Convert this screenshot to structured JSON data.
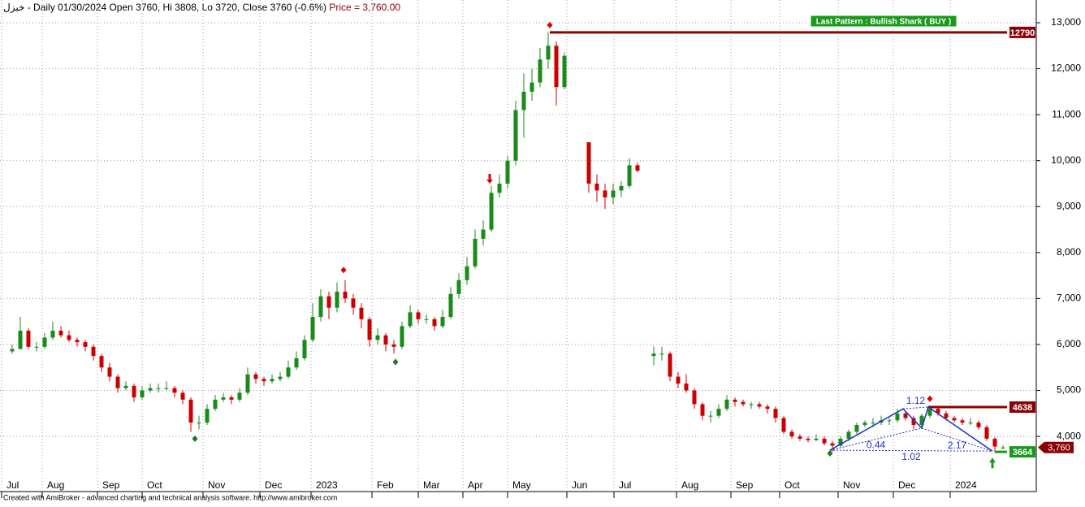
{
  "chart_data": {
    "type": "candlestick",
    "header": "خبزل - Daily 01/30/2024 Open 3760, Hi 3808, Lo 3720, Close 3760 (-0.6%)",
    "price_label": "Price = 3,760.00",
    "footer": "Created with AmiBroker - advanced charting and technical analysis software. http://www.amibroker.com",
    "pattern_label": "Last Pattern : Bullish Shark ( BUY )",
    "up_color": "#1a8a1a",
    "down_color": "#cc0000",
    "ylim": [
      2800,
      13495
    ],
    "xlim": [
      -0.5,
      127.1
    ],
    "yticks": [
      {
        "value": 4000,
        "label": "4,000"
      },
      {
        "value": 5000,
        "label": "5,000"
      },
      {
        "value": 6000,
        "label": "6,000"
      },
      {
        "value": 7000,
        "label": "7,000"
      },
      {
        "value": 8000,
        "label": "8,000"
      },
      {
        "value": 9000,
        "label": "9,000"
      },
      {
        "value": 10000,
        "label": "10,000"
      },
      {
        "value": 11000,
        "label": "11,000"
      },
      {
        "value": 12000,
        "label": "12,000"
      },
      {
        "value": 13000,
        "label": "13,000"
      }
    ],
    "xticks": [
      {
        "value": -0.3,
        "label": "Jul"
      },
      {
        "value": 4.7,
        "label": "Aug"
      },
      {
        "value": 11.5,
        "label": "Sep"
      },
      {
        "value": 17,
        "label": "Oct"
      },
      {
        "value": 24.5,
        "label": "Nov"
      },
      {
        "value": 31.5,
        "label": "Dec"
      },
      {
        "value": 37.8,
        "label": "2023"
      },
      {
        "value": 45.3,
        "label": "Feb"
      },
      {
        "value": 51,
        "label": "Mar"
      },
      {
        "value": 56.5,
        "label": "Apr"
      },
      {
        "value": 62,
        "label": "May"
      },
      {
        "value": 69.3,
        "label": "Jun"
      },
      {
        "value": 75.1,
        "label": "Jul"
      },
      {
        "value": 82.8,
        "label": "Aug"
      },
      {
        "value": 89.5,
        "label": "Sep"
      },
      {
        "value": 95.5,
        "label": "Oct"
      },
      {
        "value": 102.7,
        "label": "Nov"
      },
      {
        "value": 109.5,
        "label": "Dec"
      },
      {
        "value": 116.5,
        "label": "2024"
      }
    ],
    "grid": true,
    "ohlc": [
      null,
      [
        5850,
        6000,
        5800,
        5900
      ],
      [
        5900,
        6600,
        5900,
        6300
      ],
      [
        6300,
        6350,
        5900,
        5950
      ],
      [
        5950,
        6050,
        5850,
        5950
      ],
      [
        5950,
        6250,
        5900,
        6150
      ],
      [
        6150,
        6500,
        6100,
        6300
      ],
      [
        6300,
        6400,
        6150,
        6200
      ],
      [
        6200,
        6300,
        6050,
        6100
      ],
      [
        6100,
        6150,
        5950,
        6050
      ],
      [
        6050,
        6100,
        5850,
        5950
      ],
      [
        5950,
        6000,
        5650,
        5750
      ],
      [
        5750,
        5800,
        5400,
        5500
      ],
      [
        5500,
        5600,
        5200,
        5300
      ],
      [
        5300,
        5350,
        4950,
        5050
      ],
      [
        5050,
        5200,
        5000,
        5100
      ],
      [
        5100,
        5150,
        4750,
        4850
      ],
      [
        4850,
        5100,
        4800,
        5000
      ],
      [
        5000,
        5150,
        4950,
        5050
      ],
      [
        5050,
        5150,
        4950,
        5050
      ],
      [
        5050,
        5200,
        5000,
        5050
      ],
      [
        5050,
        5100,
        4850,
        4950
      ],
      [
        4950,
        5000,
        4700,
        4800
      ],
      [
        4800,
        4850,
        4100,
        4300
      ],
      [
        4300,
        4450,
        4150,
        4300
      ],
      [
        4300,
        4700,
        4250,
        4600
      ],
      [
        4600,
        4900,
        4550,
        4800
      ],
      [
        4800,
        4950,
        4750,
        4850
      ],
      [
        4850,
        4900,
        4700,
        4800
      ],
      [
        4800,
        5050,
        4750,
        4950
      ],
      [
        4950,
        5500,
        4900,
        5350
      ],
      [
        5350,
        5400,
        5150,
        5250
      ],
      [
        5250,
        5300,
        5100,
        5200
      ],
      [
        5200,
        5350,
        5150,
        5250
      ],
      [
        5250,
        5400,
        5200,
        5300
      ],
      [
        5300,
        5650,
        5250,
        5500
      ],
      [
        5500,
        5850,
        5450,
        5700
      ],
      [
        5700,
        6200,
        5650,
        6100
      ],
      [
        6100,
        6900,
        6050,
        6600
      ],
      [
        6600,
        7200,
        6500,
        7050
      ],
      [
        7050,
        7150,
        6550,
        6800
      ],
      [
        6800,
        7350,
        6700,
        7150
      ],
      [
        7150,
        7400,
        6900,
        7000
      ],
      [
        7000,
        7100,
        6650,
        6800
      ],
      [
        6800,
        6900,
        6350,
        6550
      ],
      [
        6550,
        6600,
        5950,
        6100
      ],
      [
        6100,
        6350,
        6000,
        6200
      ],
      [
        6200,
        6250,
        5850,
        6000
      ],
      [
        6000,
        6100,
        5800,
        5950
      ],
      [
        5950,
        6500,
        5900,
        6400
      ],
      [
        6400,
        6850,
        6350,
        6700
      ],
      [
        6700,
        6750,
        6450,
        6550
      ],
      [
        6550,
        6650,
        6450,
        6550
      ],
      [
        6550,
        6600,
        6300,
        6400
      ],
      [
        6400,
        6750,
        6350,
        6600
      ],
      [
        6600,
        7250,
        6550,
        7100
      ],
      [
        7100,
        7550,
        7000,
        7400
      ],
      [
        7400,
        7900,
        7300,
        7700
      ],
      [
        7700,
        8500,
        7650,
        8300
      ],
      [
        8300,
        8700,
        8150,
        8500
      ],
      [
        8500,
        9450,
        8450,
        9300
      ],
      [
        9300,
        9700,
        9200,
        9500
      ],
      [
        9500,
        10100,
        9400,
        10000
      ],
      [
        10000,
        11300,
        9900,
        11100
      ],
      [
        11100,
        11900,
        10500,
        11500
      ],
      [
        11500,
        12000,
        11300,
        11700
      ],
      [
        11700,
        12450,
        11600,
        12200
      ],
      [
        12200,
        12790,
        12000,
        12500
      ],
      [
        12500,
        12600,
        11200,
        11600
      ],
      [
        11600,
        12350,
        11550,
        12280
      ],
      null,
      null,
      [
        10400,
        10400,
        9300,
        9500
      ],
      [
        9500,
        9700,
        9100,
        9350
      ],
      [
        9350,
        9500,
        8950,
        9200
      ],
      [
        9200,
        9500,
        9050,
        9350
      ],
      [
        9350,
        9550,
        9200,
        9450
      ],
      [
        9450,
        10050,
        9400,
        9900
      ],
      [
        9900,
        9950,
        9750,
        9780
      ],
      null,
      [
        5750,
        5950,
        5550,
        5800
      ],
      [
        5800,
        5950,
        5650,
        5800
      ],
      [
        5800,
        5850,
        5200,
        5300
      ],
      [
        5300,
        5400,
        5050,
        5150
      ],
      [
        5150,
        5350,
        4950,
        5000
      ],
      [
        5000,
        5050,
        4600,
        4700
      ],
      [
        4700,
        4750,
        4350,
        4450
      ],
      [
        4450,
        4550,
        4300,
        4450
      ],
      [
        4450,
        4700,
        4400,
        4600
      ],
      [
        4600,
        4900,
        4550,
        4800
      ],
      [
        4800,
        4850,
        4650,
        4750
      ],
      [
        4750,
        4800,
        4650,
        4700
      ],
      [
        4700,
        4750,
        4600,
        4700
      ],
      [
        4700,
        4750,
        4600,
        4650
      ],
      [
        4650,
        4700,
        4500,
        4600
      ],
      [
        4600,
        4650,
        4300,
        4400
      ],
      [
        4400,
        4450,
        4050,
        4100
      ],
      [
        4100,
        4150,
        3950,
        4000
      ],
      [
        4000,
        4050,
        3900,
        3950
      ],
      [
        3950,
        4000,
        3870,
        3920
      ],
      [
        3920,
        4050,
        3900,
        3950
      ],
      [
        3950,
        4000,
        3800,
        3850
      ],
      [
        3850,
        3900,
        3664,
        3800
      ],
      [
        3800,
        4000,
        3750,
        3950
      ],
      [
        3950,
        4150,
        3900,
        4100
      ],
      [
        4100,
        4300,
        4050,
        4250
      ],
      [
        4250,
        4350,
        4200,
        4300
      ],
      [
        4300,
        4400,
        4200,
        4300
      ],
      [
        4300,
        4450,
        4250,
        4350
      ],
      [
        4350,
        4400,
        4250,
        4350
      ],
      [
        4350,
        4600,
        4300,
        4500
      ],
      [
        4500,
        4550,
        4350,
        4400
      ],
      [
        4400,
        4450,
        4150,
        4250
      ],
      [
        4250,
        4500,
        4200,
        4450
      ],
      [
        4450,
        4638,
        4400,
        4600
      ],
      [
        4600,
        4620,
        4450,
        4500
      ],
      [
        4500,
        4550,
        4350,
        4400
      ],
      [
        4400,
        4450,
        4300,
        4350
      ],
      [
        4350,
        4400,
        4250,
        4300
      ],
      [
        4300,
        4400,
        4250,
        4300
      ],
      [
        4300,
        4350,
        4150,
        4200
      ],
      [
        4200,
        4250,
        3900,
        3950
      ],
      [
        3950,
        3980,
        3664,
        3780
      ],
      [
        3760,
        3808,
        3720,
        3760
      ]
    ],
    "levels": [
      {
        "value": 12790,
        "from": 67.2,
        "color": "#8b0000"
      },
      {
        "value": 4638,
        "from": 113.8,
        "color": "#8b0000"
      },
      {
        "value": 3664,
        "from": 122,
        "color": "#1a9a1a"
      }
    ],
    "last_price": {
      "value": 3760,
      "label": "3,760",
      "color": "#8b0000"
    },
    "signals_sell": [
      {
        "x": 67.2,
        "y": 12950
      },
      {
        "x": 41.8,
        "y": 7620
      },
      {
        "x": 114,
        "y": 4820
      }
    ],
    "signals_buy": [
      {
        "x": 23.5,
        "y": 3950
      },
      {
        "x": 48.2,
        "y": 5620
      },
      {
        "x": 101.7,
        "y": 3630
      }
    ],
    "arrow_down": {
      "x": 59.8,
      "y": 9500
    },
    "arrow_up": {
      "x": 121.7,
      "y": 3450
    },
    "pattern": {
      "color": "#2030c0",
      "x": [
        101.7,
        110.7,
        113.0,
        113.8,
        121.7
      ],
      "y": [
        3700,
        4600,
        4180,
        4640,
        3680
      ],
      "ratios": [
        "0.44",
        "1.12",
        "2.17",
        "1.02"
      ]
    }
  }
}
